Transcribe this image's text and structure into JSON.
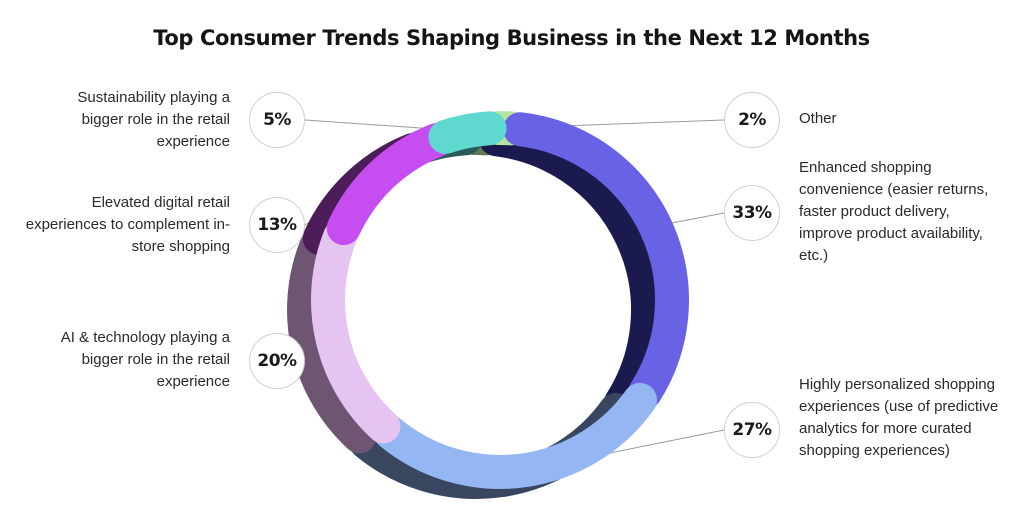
{
  "chart_data": {
    "type": "pie",
    "title": "Top Consumer Trends Shaping Business in the Next 12 Months",
    "segments": [
      {
        "label": "Other",
        "value": 2,
        "display": "2%",
        "color": "#b9e3a3",
        "shadow": "#5c7a52"
      },
      {
        "label": "Enhanced shopping convenience (easier returns, faster product delivery, improve product availability, etc.)",
        "value": 33,
        "display": "33%",
        "color": "#6862e4",
        "shadow": "#1b1a4f"
      },
      {
        "label": "Highly personalized shopping experiences (use of predictive analytics for more curated shopping experiences)",
        "value": 27,
        "display": "27%",
        "color": "#94b6f2",
        "shadow": "#384660"
      },
      {
        "label": "AI & technology playing a bigger role in the retail experience",
        "value": 20,
        "display": "20%",
        "color": "#e6c4f1",
        "shadow": "#6e5673"
      },
      {
        "label": "Elevated digital retail experiences to complement in-store shopping",
        "value": 13,
        "display": "13%",
        "color": "#c64ef1",
        "shadow": "#4d1d5a"
      },
      {
        "label": "Sustainability playing a bigger role in the retail experience",
        "value": 5,
        "display": "5%",
        "color": "#5fd8d0",
        "shadow": "#2a5a5a"
      }
    ],
    "legend": "callouts"
  }
}
